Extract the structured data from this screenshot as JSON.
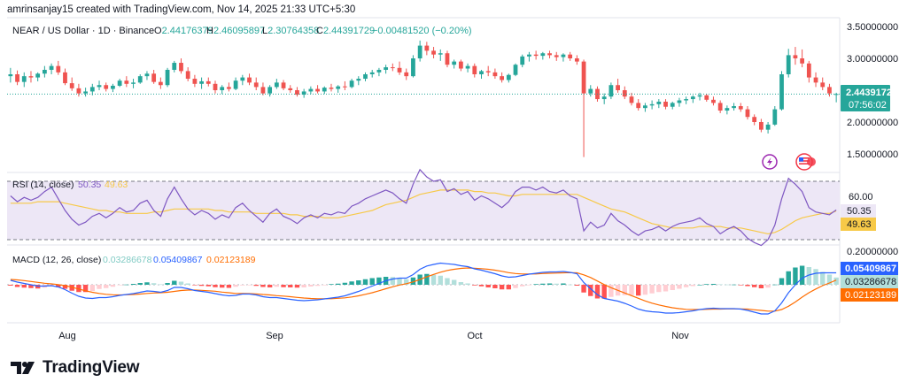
{
  "credit": "amrinsanjay15 created with TradingView.com, Nov 14, 2025 21:33 UTC+5:30",
  "brand": "TradingView",
  "colors": {
    "up": "#26a69a",
    "down": "#ef5350",
    "rsi_line": "#7e57c2",
    "rsi_ma": "#f7c948",
    "rsi_band": "#ede7f6",
    "macd_line": "#2962ff",
    "signal_line": "#ff6d00",
    "hist_pos_strong": "#26a69a",
    "hist_pos_weak": "#b2dfdb",
    "hist_neg_strong": "#ff5252",
    "hist_neg_weak": "#ffcdd2",
    "price_line": "#26a69a",
    "grid": "#f0f3fa",
    "icon_purple": "#9c27b0",
    "icon_red": "#f23645"
  },
  "icons": [
    "lightning-event-icon",
    "us-flag-event-icon"
  ],
  "price_pane": {
    "symbol": "NEAR / US Dollar · 1D · Binance",
    "ohlc": [
      {
        "key": "O",
        "value": "2.44176379"
      },
      {
        "key": "H",
        "value": "2.46095897"
      },
      {
        "key": "L",
        "value": "2.30764358"
      },
      {
        "key": "C",
        "value": "2.44391729"
      }
    ],
    "change": "−0.00481520 (−0.20%)",
    "last_price": "2.44391729",
    "countdown": "07:56:02",
    "y_ticks": [
      "3.50000000",
      "3.00000000",
      "2.00000000",
      "1.50000000"
    ]
  },
  "rsi_pane": {
    "label": "RSI (14, close)",
    "rsi_value": "50.35",
    "ma_value": "49.63",
    "y_ticks": [
      "60.00"
    ]
  },
  "macd_pane": {
    "label": "MACD (12, 26, close)",
    "hist_value": "0.03286678",
    "macd_value": "0.05409867",
    "signal_value": "0.02123189",
    "y_ticks": [
      "0.20000000"
    ]
  },
  "x_axis": {
    "labels": [
      "Aug",
      "Sep",
      "Oct",
      "Nov"
    ]
  },
  "chart_data": {
    "type": "candlestick",
    "title": "NEAR / US Dollar · 1D · Binance",
    "date_range": [
      "2025-07-14",
      "2025-11-14"
    ],
    "x_ticks": [
      "Aug",
      "Sep",
      "Oct",
      "Nov"
    ],
    "price_range": [
      1.42,
      3.5
    ],
    "ohlc": [
      [
        2.72,
        2.85,
        2.62,
        2.75
      ],
      [
        2.75,
        2.81,
        2.58,
        2.63
      ],
      [
        2.63,
        2.78,
        2.55,
        2.72
      ],
      [
        2.72,
        2.8,
        2.62,
        2.7
      ],
      [
        2.7,
        2.78,
        2.64,
        2.76
      ],
      [
        2.76,
        2.88,
        2.7,
        2.82
      ],
      [
        2.82,
        2.92,
        2.75,
        2.88
      ],
      [
        2.88,
        2.96,
        2.74,
        2.78
      ],
      [
        2.78,
        2.84,
        2.58,
        2.61
      ],
      [
        2.61,
        2.7,
        2.49,
        2.53
      ],
      [
        2.53,
        2.6,
        2.4,
        2.45
      ],
      [
        2.45,
        2.54,
        2.4,
        2.48
      ],
      [
        2.48,
        2.6,
        2.42,
        2.55
      ],
      [
        2.55,
        2.65,
        2.5,
        2.58
      ],
      [
        2.58,
        2.62,
        2.48,
        2.52
      ],
      [
        2.52,
        2.6,
        2.47,
        2.57
      ],
      [
        2.57,
        2.68,
        2.55,
        2.65
      ],
      [
        2.65,
        2.72,
        2.55,
        2.6
      ],
      [
        2.6,
        2.68,
        2.53,
        2.62
      ],
      [
        2.62,
        2.75,
        2.6,
        2.72
      ],
      [
        2.72,
        2.8,
        2.66,
        2.76
      ],
      [
        2.76,
        2.82,
        2.6,
        2.63
      ],
      [
        2.63,
        2.7,
        2.52,
        2.58
      ],
      [
        2.58,
        2.85,
        2.55,
        2.82
      ],
      [
        2.82,
        2.96,
        2.78,
        2.93
      ],
      [
        2.93,
        3.0,
        2.76,
        2.8
      ],
      [
        2.8,
        2.86,
        2.64,
        2.68
      ],
      [
        2.68,
        2.74,
        2.55,
        2.6
      ],
      [
        2.6,
        2.7,
        2.52,
        2.64
      ],
      [
        2.64,
        2.7,
        2.56,
        2.6
      ],
      [
        2.6,
        2.65,
        2.45,
        2.5
      ],
      [
        2.5,
        2.58,
        2.44,
        2.55
      ],
      [
        2.55,
        2.62,
        2.48,
        2.52
      ],
      [
        2.52,
        2.7,
        2.5,
        2.65
      ],
      [
        2.65,
        2.74,
        2.58,
        2.7
      ],
      [
        2.7,
        2.76,
        2.58,
        2.62
      ],
      [
        2.62,
        2.7,
        2.5,
        2.55
      ],
      [
        2.55,
        2.62,
        2.42,
        2.45
      ],
      [
        2.45,
        2.58,
        2.4,
        2.55
      ],
      [
        2.55,
        2.68,
        2.52,
        2.62
      ],
      [
        2.62,
        2.66,
        2.5,
        2.53
      ],
      [
        2.53,
        2.58,
        2.46,
        2.5
      ],
      [
        2.5,
        2.55,
        2.4,
        2.43
      ],
      [
        2.43,
        2.52,
        2.38,
        2.48
      ],
      [
        2.48,
        2.56,
        2.44,
        2.52
      ],
      [
        2.52,
        2.58,
        2.45,
        2.48
      ],
      [
        2.48,
        2.56,
        2.44,
        2.54
      ],
      [
        2.54,
        2.6,
        2.48,
        2.52
      ],
      [
        2.52,
        2.58,
        2.46,
        2.56
      ],
      [
        2.56,
        2.64,
        2.5,
        2.55
      ],
      [
        2.55,
        2.68,
        2.53,
        2.65
      ],
      [
        2.65,
        2.72,
        2.58,
        2.68
      ],
      [
        2.68,
        2.78,
        2.64,
        2.75
      ],
      [
        2.75,
        2.82,
        2.7,
        2.78
      ],
      [
        2.78,
        2.85,
        2.72,
        2.82
      ],
      [
        2.82,
        2.9,
        2.76,
        2.86
      ],
      [
        2.86,
        2.92,
        2.8,
        2.85
      ],
      [
        2.85,
        2.95,
        2.74,
        2.78
      ],
      [
        2.78,
        2.84,
        2.66,
        2.72
      ],
      [
        2.72,
        3.05,
        2.7,
        3.0
      ],
      [
        3.0,
        3.28,
        2.95,
        3.2
      ],
      [
        3.2,
        3.26,
        3.05,
        3.12
      ],
      [
        3.12,
        3.18,
        3.0,
        3.06
      ],
      [
        3.06,
        3.14,
        2.96,
        3.08
      ],
      [
        3.08,
        3.12,
        2.86,
        2.9
      ],
      [
        2.9,
        2.98,
        2.84,
        2.95
      ],
      [
        2.95,
        2.98,
        2.8,
        2.84
      ],
      [
        2.84,
        2.92,
        2.78,
        2.88
      ],
      [
        2.88,
        2.92,
        2.7,
        2.75
      ],
      [
        2.75,
        2.82,
        2.68,
        2.8
      ],
      [
        2.8,
        2.88,
        2.72,
        2.78
      ],
      [
        2.78,
        2.84,
        2.68,
        2.72
      ],
      [
        2.72,
        2.78,
        2.62,
        2.66
      ],
      [
        2.66,
        2.76,
        2.62,
        2.74
      ],
      [
        2.74,
        2.92,
        2.72,
        2.9
      ],
      [
        2.9,
        3.06,
        2.86,
        3.03
      ],
      [
        3.03,
        3.1,
        2.95,
        3.06
      ],
      [
        3.06,
        3.12,
        2.98,
        3.04
      ],
      [
        3.04,
        3.1,
        2.98,
        3.08
      ],
      [
        3.08,
        3.12,
        3.0,
        3.05
      ],
      [
        3.05,
        3.1,
        2.96,
        3.02
      ],
      [
        3.02,
        3.08,
        2.95,
        3.06
      ],
      [
        3.06,
        3.1,
        2.96,
        3.0
      ],
      [
        3.0,
        3.05,
        2.9,
        2.95
      ],
      [
        2.95,
        2.98,
        1.45,
        2.45
      ],
      [
        2.45,
        2.58,
        2.4,
        2.52
      ],
      [
        2.52,
        2.56,
        2.32,
        2.36
      ],
      [
        2.36,
        2.45,
        2.28,
        2.4
      ],
      [
        2.4,
        2.62,
        2.36,
        2.58
      ],
      [
        2.58,
        2.68,
        2.46,
        2.5
      ],
      [
        2.5,
        2.56,
        2.36,
        2.4
      ],
      [
        2.4,
        2.46,
        2.26,
        2.3
      ],
      [
        2.3,
        2.36,
        2.18,
        2.22
      ],
      [
        2.22,
        2.3,
        2.16,
        2.26
      ],
      [
        2.26,
        2.34,
        2.2,
        2.28
      ],
      [
        2.28,
        2.36,
        2.22,
        2.32
      ],
      [
        2.32,
        2.36,
        2.2,
        2.24
      ],
      [
        2.24,
        2.32,
        2.2,
        2.3
      ],
      [
        2.3,
        2.38,
        2.24,
        2.34
      ],
      [
        2.34,
        2.4,
        2.28,
        2.36
      ],
      [
        2.36,
        2.42,
        2.3,
        2.4
      ],
      [
        2.4,
        2.46,
        2.34,
        2.42
      ],
      [
        2.42,
        2.44,
        2.32,
        2.35
      ],
      [
        2.35,
        2.4,
        2.26,
        2.3
      ],
      [
        2.3,
        2.34,
        2.14,
        2.18
      ],
      [
        2.18,
        2.26,
        2.12,
        2.22
      ],
      [
        2.22,
        2.3,
        2.18,
        2.25
      ],
      [
        2.25,
        2.3,
        2.16,
        2.2
      ],
      [
        2.2,
        2.25,
        2.04,
        2.08
      ],
      [
        2.08,
        2.12,
        1.95,
        2.0
      ],
      [
        2.0,
        2.05,
        1.84,
        1.88
      ],
      [
        1.88,
        2.0,
        1.82,
        1.96
      ],
      [
        1.96,
        2.25,
        1.94,
        2.2
      ],
      [
        2.2,
        2.8,
        2.18,
        2.75
      ],
      [
        2.75,
        3.15,
        2.7,
        3.05
      ],
      [
        3.05,
        3.18,
        2.9,
        3.0
      ],
      [
        3.0,
        3.14,
        2.86,
        2.92
      ],
      [
        2.92,
        2.96,
        2.62,
        2.7
      ],
      [
        2.7,
        2.78,
        2.55,
        2.62
      ],
      [
        2.62,
        2.7,
        2.5,
        2.55
      ],
      [
        2.55,
        2.6,
        2.4,
        2.45
      ],
      [
        2.44,
        2.46,
        2.31,
        2.44
      ]
    ],
    "rsi": {
      "range": [
        28,
        82
      ],
      "upper_band": 70,
      "lower_band": 30,
      "rsi_series": [
        60,
        56,
        59,
        57,
        59,
        63,
        66,
        58,
        50,
        44,
        40,
        42,
        46,
        48,
        45,
        48,
        52,
        49,
        50,
        55,
        57,
        50,
        46,
        58,
        66,
        58,
        51,
        47,
        50,
        48,
        44,
        47,
        45,
        52,
        55,
        50,
        46,
        42,
        48,
        51,
        46,
        44,
        41,
        45,
        47,
        45,
        48,
        47,
        49,
        48,
        53,
        55,
        58,
        60,
        62,
        64,
        62,
        58,
        55,
        68,
        78,
        73,
        70,
        71,
        63,
        65,
        61,
        63,
        57,
        60,
        58,
        55,
        52,
        56,
        63,
        66,
        66,
        64,
        66,
        63,
        62,
        64,
        60,
        58,
        36,
        42,
        38,
        40,
        48,
        43,
        40,
        36,
        33,
        36,
        37,
        39,
        36,
        39,
        41,
        42,
        43,
        45,
        41,
        39,
        34,
        37,
        39,
        36,
        31,
        28,
        26,
        30,
        40,
        58,
        72,
        68,
        63,
        52,
        49,
        48,
        47,
        50.35
      ],
      "ma_series": [
        55,
        55,
        55,
        55,
        56,
        56,
        56,
        56,
        55,
        54,
        53,
        52,
        51,
        50,
        50,
        49,
        49,
        48,
        48,
        48,
        48,
        49,
        49,
        50,
        51,
        51,
        51,
        51,
        51,
        51,
        50,
        50,
        49,
        49,
        49,
        49,
        48,
        48,
        48,
        48,
        48,
        47,
        47,
        46,
        46,
        46,
        45,
        45,
        45,
        46,
        47,
        48,
        49,
        50,
        52,
        54,
        55,
        56,
        57,
        59,
        61,
        62,
        63,
        64,
        64,
        64,
        64,
        64,
        63,
        63,
        62,
        62,
        61,
        60,
        60,
        61,
        61,
        61,
        61,
        61,
        61,
        61,
        61,
        61,
        59,
        57,
        55,
        53,
        51,
        50,
        49,
        47,
        45,
        43,
        41,
        40,
        39,
        38,
        38,
        38,
        38,
        39,
        39,
        39,
        39,
        38,
        38,
        38,
        37,
        36,
        35,
        34,
        35,
        37,
        40,
        43,
        45,
        46,
        47,
        48,
        48,
        49.63
      ]
    },
    "macd": {
      "range": [
        -0.16,
        0.23
      ],
      "macd_series": [
        0.02,
        0.012,
        0.006,
        0.0,
        -0.006,
        -0.006,
        -0.004,
        -0.01,
        -0.022,
        -0.038,
        -0.052,
        -0.06,
        -0.062,
        -0.058,
        -0.058,
        -0.054,
        -0.048,
        -0.044,
        -0.04,
        -0.034,
        -0.028,
        -0.03,
        -0.034,
        -0.026,
        -0.012,
        -0.012,
        -0.018,
        -0.026,
        -0.03,
        -0.034,
        -0.04,
        -0.046,
        -0.05,
        -0.048,
        -0.042,
        -0.042,
        -0.046,
        -0.054,
        -0.058,
        -0.058,
        -0.062,
        -0.066,
        -0.07,
        -0.072,
        -0.07,
        -0.068,
        -0.064,
        -0.06,
        -0.056,
        -0.05,
        -0.04,
        -0.03,
        -0.018,
        -0.006,
        0.006,
        0.018,
        0.026,
        0.03,
        0.03,
        0.046,
        0.07,
        0.085,
        0.092,
        0.098,
        0.095,
        0.092,
        0.086,
        0.082,
        0.072,
        0.066,
        0.058,
        0.05,
        0.04,
        0.034,
        0.036,
        0.042,
        0.048,
        0.052,
        0.056,
        0.058,
        0.058,
        0.06,
        0.056,
        0.05,
        0.01,
        -0.018,
        -0.045,
        -0.062,
        -0.068,
        -0.074,
        -0.084,
        -0.096,
        -0.11,
        -0.118,
        -0.122,
        -0.124,
        -0.128,
        -0.128,
        -0.126,
        -0.122,
        -0.118,
        -0.112,
        -0.108,
        -0.106,
        -0.108,
        -0.108,
        -0.108,
        -0.11,
        -0.116,
        -0.124,
        -0.132,
        -0.132,
        -0.118,
        -0.082,
        -0.036,
        0.0,
        0.03,
        0.044,
        0.052,
        0.054,
        0.054,
        0.05409867
      ],
      "signal_series": [
        0.024,
        0.022,
        0.019,
        0.015,
        0.011,
        0.007,
        0.004,
        0.001,
        -0.004,
        -0.011,
        -0.019,
        -0.027,
        -0.034,
        -0.039,
        -0.043,
        -0.045,
        -0.046,
        -0.045,
        -0.044,
        -0.042,
        -0.039,
        -0.037,
        -0.036,
        -0.034,
        -0.03,
        -0.026,
        -0.024,
        -0.024,
        -0.025,
        -0.027,
        -0.029,
        -0.033,
        -0.036,
        -0.039,
        -0.039,
        -0.04,
        -0.041,
        -0.044,
        -0.046,
        -0.049,
        -0.051,
        -0.054,
        -0.057,
        -0.06,
        -0.062,
        -0.063,
        -0.063,
        -0.063,
        -0.061,
        -0.059,
        -0.055,
        -0.05,
        -0.043,
        -0.036,
        -0.027,
        -0.018,
        -0.009,
        -0.001,
        0.005,
        0.013,
        0.024,
        0.036,
        0.047,
        0.057,
        0.065,
        0.07,
        0.074,
        0.076,
        0.075,
        0.073,
        0.07,
        0.066,
        0.061,
        0.055,
        0.051,
        0.049,
        0.049,
        0.049,
        0.051,
        0.052,
        0.053,
        0.054,
        0.055,
        0.054,
        0.045,
        0.033,
        0.017,
        0.001,
        -0.013,
        -0.025,
        -0.037,
        -0.049,
        -0.061,
        -0.073,
        -0.083,
        -0.091,
        -0.098,
        -0.104,
        -0.108,
        -0.111,
        -0.112,
        -0.112,
        -0.111,
        -0.11,
        -0.11,
        -0.109,
        -0.109,
        -0.109,
        -0.11,
        -0.113,
        -0.116,
        -0.119,
        -0.119,
        -0.112,
        -0.097,
        -0.078,
        -0.056,
        -0.036,
        -0.019,
        -0.004,
        0.008,
        0.02123189
      ]
    }
  }
}
